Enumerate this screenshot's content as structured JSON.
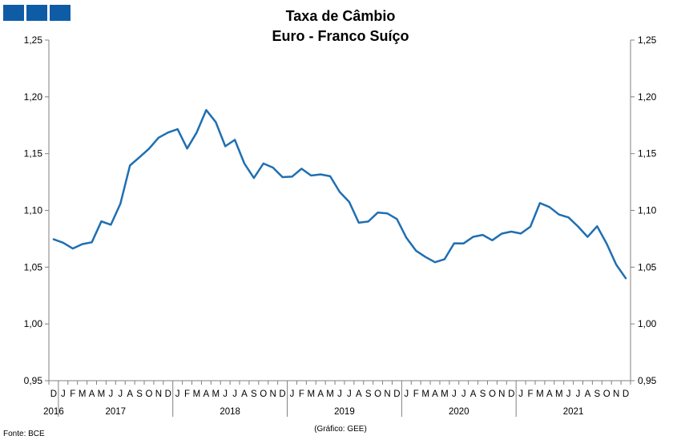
{
  "header": {
    "title_line1": "Taxa de Câmbio",
    "title_line2": "Euro - Franco Suíço",
    "logo_color": "#0f5ca6"
  },
  "footer": {
    "source": "Fonte: BCE",
    "credit": "(Gráfico: GEE)"
  },
  "chart_data": {
    "type": "line",
    "title": "Taxa de Câmbio Euro - Franco Suíço",
    "xlabel": "",
    "ylabel": "",
    "ylim": [
      0.95,
      1.25
    ],
    "yticks": [
      "0,95",
      "1,00",
      "1,05",
      "1,10",
      "1,15",
      "1,20",
      "1,25"
    ],
    "yticks_right": true,
    "grid": false,
    "line_color": "#1f6fb2",
    "month_labels": [
      "D",
      "J",
      "F",
      "M",
      "A",
      "M",
      "J",
      "J",
      "A",
      "S",
      "O",
      "N",
      "D",
      "J",
      "F",
      "M",
      "A",
      "M",
      "J",
      "J",
      "A",
      "S",
      "O",
      "N",
      "D",
      "J",
      "F",
      "M",
      "A",
      "M",
      "J",
      "J",
      "A",
      "S",
      "O",
      "N",
      "D",
      "J",
      "F",
      "M",
      "A",
      "M",
      "J",
      "J",
      "A",
      "S",
      "O",
      "N",
      "D",
      "J",
      "F",
      "M",
      "A",
      "M",
      "J",
      "J",
      "A",
      "S",
      "O",
      "N",
      "D"
    ],
    "years": [
      {
        "label": "2016",
        "start": 0,
        "end": 0
      },
      {
        "label": "2017",
        "start": 1,
        "end": 12
      },
      {
        "label": "2018",
        "start": 13,
        "end": 24
      },
      {
        "label": "2019",
        "start": 25,
        "end": 36
      },
      {
        "label": "2020",
        "start": 37,
        "end": 48
      },
      {
        "label": "2021",
        "start": 49,
        "end": 60
      }
    ],
    "series": [
      {
        "values": [
          1.0745,
          1.0715,
          1.0664,
          1.0703,
          1.0719,
          1.0903,
          1.0874,
          1.1059,
          1.1395,
          1.1468,
          1.1543,
          1.164,
          1.1686,
          1.1715,
          1.1545,
          1.1686,
          1.1884,
          1.1778,
          1.1565,
          1.1621,
          1.1413,
          1.1285,
          1.1413,
          1.1377,
          1.1293,
          1.1297,
          1.1367,
          1.1307,
          1.1317,
          1.1301,
          1.1162,
          1.1074,
          1.0891,
          1.0902,
          1.0981,
          1.0973,
          1.0924,
          1.0758,
          1.0645,
          1.0589,
          1.0543,
          1.057,
          1.071,
          1.0709,
          1.0767,
          1.0784,
          1.0737,
          1.0795,
          1.0813,
          1.0796,
          1.0856,
          1.1064,
          1.103,
          1.0963,
          1.0938,
          1.0858,
          1.0766,
          1.086,
          1.0707,
          1.0523,
          1.0402
        ]
      }
    ]
  }
}
